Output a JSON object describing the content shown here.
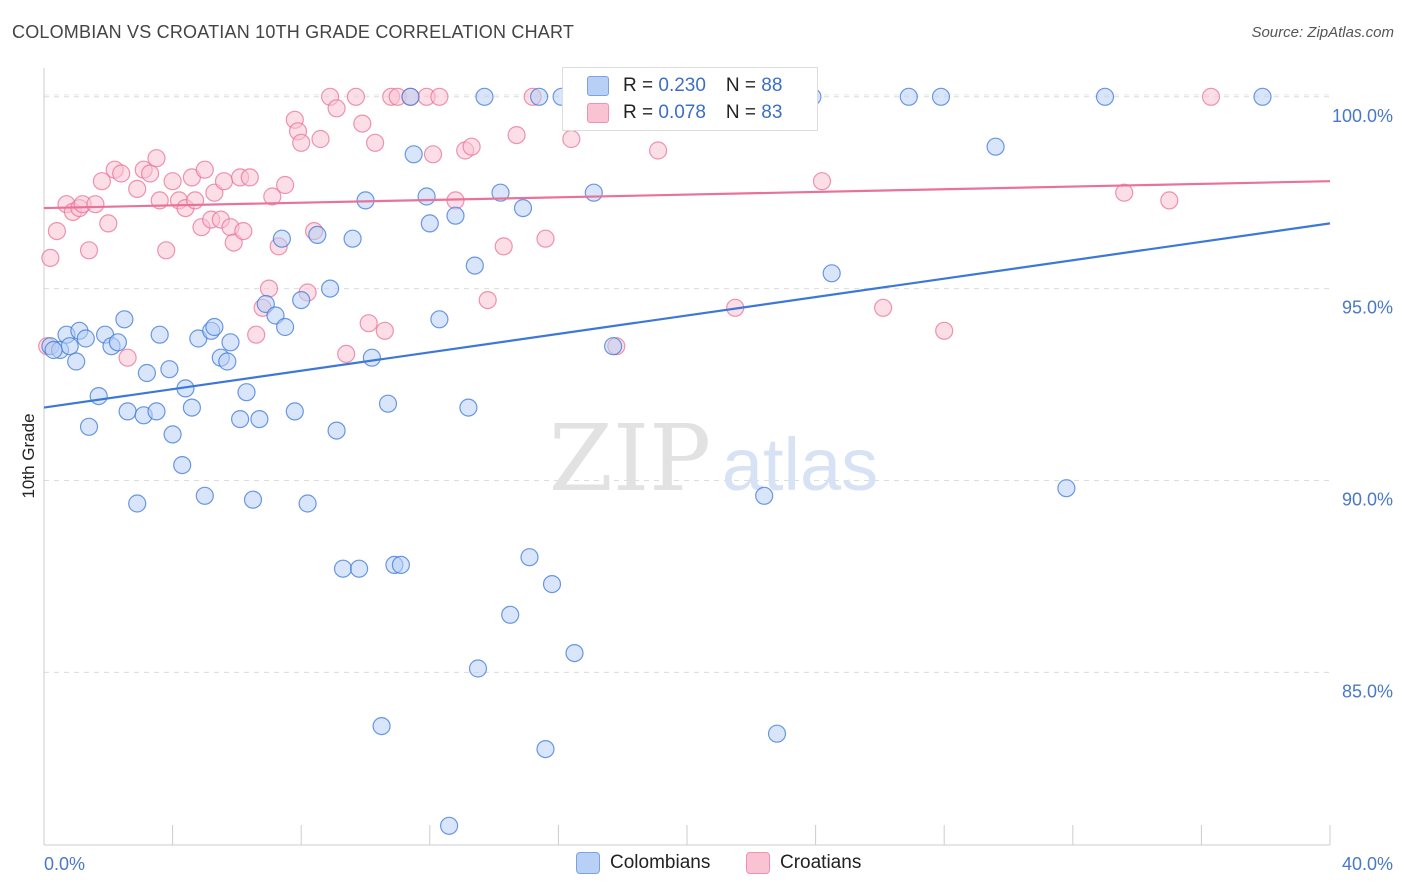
{
  "title": "COLOMBIAN VS CROATIAN 10TH GRADE CORRELATION CHART",
  "source": "Source: ZipAtlas.com",
  "watermark": {
    "zip": "ZIP",
    "atlas": "atlas"
  },
  "legend": {
    "rows": [
      {
        "r_label": "R = ",
        "r_value": "0.230",
        "n_label": "N = ",
        "n_value": "88",
        "fill": "#b8d0f5",
        "stroke": "#7aa3e0"
      },
      {
        "r_label": "R = ",
        "r_value": "0.078",
        "n_label": "N = ",
        "n_value": "83",
        "fill": "#f9c3d4",
        "stroke": "#ee92b0"
      }
    ]
  },
  "bottom_legend": [
    {
      "label": "Colombians",
      "fill": "#b8d0f5",
      "stroke": "#7aa3e0"
    },
    {
      "label": "Croatians",
      "fill": "#f9c3d4",
      "stroke": "#ee92b0"
    }
  ],
  "chart_data": {
    "type": "scatter",
    "title": "COLOMBIAN VS CROATIAN 10TH GRADE CORRELATION CHART",
    "xlabel": "",
    "ylabel": "10th Grade",
    "xlim": [
      0,
      40
    ],
    "ylim": [
      80.5,
      100.75
    ],
    "x_tick_labels": [
      "0.0%",
      "40.0%"
    ],
    "y_ticks": [
      85,
      90,
      95,
      100
    ],
    "y_tick_labels": [
      "85.0%",
      "90.0%",
      "95.0%",
      "100.0%"
    ],
    "grid": "horizontal-dashed",
    "series": [
      {
        "name": "Colombians",
        "color": "#3c78d8",
        "fill": "#b8d0f5",
        "trend": [
          [
            0,
            91.9
          ],
          [
            40,
            96.7
          ]
        ],
        "points": [
          [
            0.2,
            93.5
          ],
          [
            0.5,
            93.4
          ],
          [
            0.7,
            93.8
          ],
          [
            0.8,
            93.5
          ],
          [
            1.1,
            93.9
          ],
          [
            1.0,
            93.1
          ],
          [
            1.4,
            91.4
          ],
          [
            1.7,
            92.2
          ],
          [
            1.9,
            93.8
          ],
          [
            2.1,
            93.5
          ],
          [
            2.3,
            93.6
          ],
          [
            2.5,
            94.2
          ],
          [
            2.6,
            91.8
          ],
          [
            2.9,
            89.4
          ],
          [
            3.1,
            91.7
          ],
          [
            3.2,
            92.8
          ],
          [
            3.5,
            91.8
          ],
          [
            3.6,
            93.8
          ],
          [
            3.9,
            92.9
          ],
          [
            4.0,
            91.2
          ],
          [
            4.3,
            90.4
          ],
          [
            4.4,
            92.4
          ],
          [
            4.6,
            91.9
          ],
          [
            4.8,
            93.7
          ],
          [
            5.0,
            89.6
          ],
          [
            5.2,
            93.9
          ],
          [
            5.3,
            94.0
          ],
          [
            5.5,
            93.2
          ],
          [
            5.7,
            93.1
          ],
          [
            5.8,
            93.6
          ],
          [
            6.1,
            91.6
          ],
          [
            6.3,
            92.3
          ],
          [
            6.5,
            89.5
          ],
          [
            6.7,
            91.6
          ],
          [
            6.9,
            94.6
          ],
          [
            7.2,
            94.3
          ],
          [
            7.4,
            96.3
          ],
          [
            7.5,
            94.0
          ],
          [
            7.8,
            91.8
          ],
          [
            8.0,
            94.7
          ],
          [
            8.2,
            89.4
          ],
          [
            8.5,
            96.4
          ],
          [
            8.9,
            95.0
          ],
          [
            9.1,
            91.3
          ],
          [
            9.3,
            87.7
          ],
          [
            9.6,
            96.3
          ],
          [
            9.8,
            87.7
          ],
          [
            10.0,
            97.3
          ],
          [
            10.2,
            93.2
          ],
          [
            10.5,
            83.6
          ],
          [
            10.7,
            92.0
          ],
          [
            10.9,
            87.8
          ],
          [
            11.1,
            87.8
          ],
          [
            11.4,
            100.0
          ],
          [
            11.5,
            98.5
          ],
          [
            11.9,
            97.4
          ],
          [
            12.0,
            96.7
          ],
          [
            12.3,
            94.2
          ],
          [
            12.6,
            81.0
          ],
          [
            12.8,
            96.9
          ],
          [
            13.2,
            91.9
          ],
          [
            13.4,
            95.6
          ],
          [
            13.5,
            85.1
          ],
          [
            13.7,
            100.0
          ],
          [
            14.2,
            97.5
          ],
          [
            14.5,
            86.5
          ],
          [
            14.9,
            97.1
          ],
          [
            15.1,
            88.0
          ],
          [
            15.4,
            100.0
          ],
          [
            15.6,
            83.0
          ],
          [
            15.8,
            87.3
          ],
          [
            16.1,
            100.0
          ],
          [
            16.5,
            85.5
          ],
          [
            17.1,
            97.5
          ],
          [
            17.7,
            93.5
          ],
          [
            22.1,
            100.0
          ],
          [
            22.4,
            89.6
          ],
          [
            22.8,
            83.4
          ],
          [
            23.9,
            100.0
          ],
          [
            24.5,
            95.4
          ],
          [
            26.9,
            100.0
          ],
          [
            27.9,
            100.0
          ],
          [
            29.6,
            98.7
          ],
          [
            31.8,
            89.8
          ],
          [
            33.0,
            100.0
          ],
          [
            37.9,
            100.0
          ],
          [
            0.3,
            93.4
          ],
          [
            1.3,
            93.7
          ]
        ]
      },
      {
        "name": "Croatians",
        "color": "#e8729a",
        "fill": "#f9c3d4",
        "trend": [
          [
            0,
            97.1
          ],
          [
            40,
            97.8
          ]
        ],
        "points": [
          [
            0.2,
            95.8
          ],
          [
            0.4,
            96.5
          ],
          [
            0.7,
            97.2
          ],
          [
            0.9,
            97.0
          ],
          [
            1.1,
            97.1
          ],
          [
            1.2,
            97.2
          ],
          [
            1.4,
            96.0
          ],
          [
            1.6,
            97.2
          ],
          [
            1.8,
            97.8
          ],
          [
            2.0,
            96.7
          ],
          [
            2.2,
            98.1
          ],
          [
            2.4,
            98.0
          ],
          [
            2.6,
            93.2
          ],
          [
            2.9,
            97.6
          ],
          [
            3.1,
            98.1
          ],
          [
            3.3,
            98.0
          ],
          [
            3.5,
            98.4
          ],
          [
            3.6,
            97.3
          ],
          [
            3.8,
            96.0
          ],
          [
            4.0,
            97.8
          ],
          [
            4.2,
            97.3
          ],
          [
            4.4,
            97.1
          ],
          [
            4.6,
            97.9
          ],
          [
            4.7,
            97.3
          ],
          [
            4.9,
            96.6
          ],
          [
            5.0,
            98.1
          ],
          [
            5.2,
            96.8
          ],
          [
            5.3,
            97.5
          ],
          [
            5.5,
            96.8
          ],
          [
            5.6,
            97.8
          ],
          [
            5.8,
            96.6
          ],
          [
            5.9,
            96.2
          ],
          [
            6.1,
            97.9
          ],
          [
            6.2,
            96.5
          ],
          [
            6.4,
            97.9
          ],
          [
            6.6,
            93.8
          ],
          [
            6.8,
            94.5
          ],
          [
            7.0,
            95.0
          ],
          [
            7.1,
            97.4
          ],
          [
            7.3,
            96.1
          ],
          [
            7.5,
            97.7
          ],
          [
            7.8,
            99.4
          ],
          [
            7.9,
            99.1
          ],
          [
            8.0,
            98.8
          ],
          [
            8.2,
            94.9
          ],
          [
            8.4,
            96.5
          ],
          [
            8.6,
            98.9
          ],
          [
            8.9,
            100.0
          ],
          [
            9.1,
            99.7
          ],
          [
            9.4,
            93.3
          ],
          [
            9.7,
            100.0
          ],
          [
            9.9,
            99.3
          ],
          [
            10.1,
            94.1
          ],
          [
            10.3,
            98.8
          ],
          [
            10.6,
            93.9
          ],
          [
            10.8,
            100.0
          ],
          [
            11.0,
            100.0
          ],
          [
            11.4,
            100.0
          ],
          [
            11.9,
            100.0
          ],
          [
            12.1,
            98.5
          ],
          [
            12.3,
            100.0
          ],
          [
            12.8,
            97.3
          ],
          [
            13.1,
            98.6
          ],
          [
            13.3,
            98.7
          ],
          [
            13.8,
            94.7
          ],
          [
            14.3,
            96.1
          ],
          [
            14.7,
            99.0
          ],
          [
            15.2,
            100.0
          ],
          [
            15.6,
            96.3
          ],
          [
            16.4,
            98.9
          ],
          [
            17.8,
            93.5
          ],
          [
            19.0,
            100.0
          ],
          [
            19.9,
            100.0
          ],
          [
            20.5,
            99.9
          ],
          [
            21.5,
            94.5
          ],
          [
            24.2,
            97.8
          ],
          [
            26.1,
            94.5
          ],
          [
            28.0,
            93.9
          ],
          [
            33.6,
            97.5
          ],
          [
            35.0,
            97.3
          ],
          [
            36.3,
            100.0
          ],
          [
            0.1,
            93.5
          ],
          [
            19.1,
            98.6
          ]
        ]
      }
    ]
  }
}
